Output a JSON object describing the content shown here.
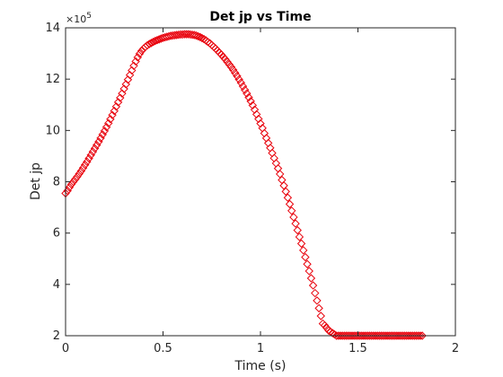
{
  "chart_data": {
    "type": "scatter",
    "title": "Det jp vs Time",
    "xlabel": "Time (s)",
    "ylabel": "Det jp",
    "xlim": [
      0,
      2
    ],
    "ylim": [
      2,
      14
    ],
    "xticks": [
      "0",
      "0.5",
      "1",
      "1.5",
      "2"
    ],
    "yticks": [
      "2",
      "4",
      "6",
      "8",
      "10",
      "12",
      "14"
    ],
    "y_multiplier": "×10",
    "y_exponent": "5",
    "grid": false,
    "marker": "diamond",
    "marker_color": "#e8000b",
    "series": [
      {
        "x": [
          0.0,
          0.01,
          0.02,
          0.03,
          0.04,
          0.05,
          0.06,
          0.07,
          0.08,
          0.09,
          0.1,
          0.11,
          0.12,
          0.13,
          0.14,
          0.15,
          0.16,
          0.17,
          0.18,
          0.19,
          0.2,
          0.21,
          0.22,
          0.23,
          0.24,
          0.25,
          0.26,
          0.27,
          0.28,
          0.29,
          0.3,
          0.31,
          0.32,
          0.33,
          0.34,
          0.35,
          0.36,
          0.37,
          0.38,
          0.39,
          0.4,
          0.41,
          0.42,
          0.43,
          0.44,
          0.45,
          0.46,
          0.47,
          0.48,
          0.49,
          0.5,
          0.51,
          0.52,
          0.53,
          0.54,
          0.55,
          0.56,
          0.57,
          0.58,
          0.59,
          0.6,
          0.61,
          0.62,
          0.63,
          0.64,
          0.65,
          0.66,
          0.67,
          0.68,
          0.69,
          0.7,
          0.71,
          0.72,
          0.73,
          0.74,
          0.75,
          0.76,
          0.77,
          0.78,
          0.79,
          0.8,
          0.81,
          0.82,
          0.83,
          0.84,
          0.85,
          0.86,
          0.87,
          0.88,
          0.89,
          0.9,
          0.91,
          0.92,
          0.93,
          0.94,
          0.95,
          0.96,
          0.97,
          0.98,
          0.99,
          1.0,
          1.01,
          1.02,
          1.03,
          1.04,
          1.05,
          1.06,
          1.07,
          1.08,
          1.09,
          1.1,
          1.11,
          1.12,
          1.13,
          1.14,
          1.15,
          1.16,
          1.17,
          1.18,
          1.19,
          1.2,
          1.21,
          1.22,
          1.23,
          1.24,
          1.25,
          1.26,
          1.27,
          1.28,
          1.29,
          1.3,
          1.31,
          1.32,
          1.33,
          1.34,
          1.35,
          1.36,
          1.37,
          1.38,
          1.39,
          1.4,
          1.41,
          1.42,
          1.43,
          1.44,
          1.45,
          1.46,
          1.47,
          1.48,
          1.49,
          1.5,
          1.51,
          1.52,
          1.53,
          1.54,
          1.55,
          1.56,
          1.57,
          1.58,
          1.59,
          1.6,
          1.61,
          1.62,
          1.63,
          1.64,
          1.65,
          1.66,
          1.67,
          1.68,
          1.69,
          1.7,
          1.71,
          1.72,
          1.73,
          1.74,
          1.75,
          1.76,
          1.77,
          1.78,
          1.79,
          1.8,
          1.81,
          1.82,
          1.83
        ],
        "y": [
          7.55,
          7.65,
          7.78,
          7.9,
          8.0,
          8.1,
          8.2,
          8.31,
          8.42,
          8.54,
          8.66,
          8.78,
          8.91,
          9.04,
          9.17,
          9.3,
          9.43,
          9.56,
          9.7,
          9.84,
          9.98,
          10.13,
          10.28,
          10.44,
          10.6,
          10.76,
          10.93,
          11.1,
          11.27,
          11.44,
          11.62,
          11.8,
          11.98,
          12.16,
          12.34,
          12.52,
          12.69,
          12.85,
          12.99,
          13.1,
          13.19,
          13.26,
          13.32,
          13.37,
          13.41,
          13.45,
          13.49,
          13.52,
          13.55,
          13.58,
          13.61,
          13.63,
          13.65,
          13.67,
          13.69,
          13.7,
          13.71,
          13.72,
          13.73,
          13.74,
          13.74,
          13.75,
          13.75,
          13.75,
          13.74,
          13.73,
          13.72,
          13.7,
          13.67,
          13.64,
          13.6,
          13.56,
          13.51,
          13.45,
          13.4,
          13.33,
          13.26,
          13.19,
          13.11,
          13.03,
          12.95,
          12.86,
          12.77,
          12.67,
          12.57,
          12.47,
          12.36,
          12.24,
          12.12,
          11.99,
          11.86,
          11.72,
          11.58,
          11.44,
          11.29,
          11.14,
          10.98,
          10.81,
          10.63,
          10.45,
          10.27,
          10.09,
          9.89,
          9.7,
          9.51,
          9.32,
          9.12,
          8.92,
          8.72,
          8.52,
          8.3,
          8.07,
          7.85,
          7.62,
          7.38,
          7.13,
          6.87,
          6.62,
          6.37,
          6.11,
          5.85,
          5.59,
          5.33,
          5.06,
          4.79,
          4.52,
          4.24,
          3.96,
          3.66,
          3.37,
          3.07,
          2.77,
          2.47,
          2.4,
          2.3,
          2.2,
          2.15,
          2.1,
          2.05,
          2.0,
          2.0,
          2.0,
          2.0,
          2.0,
          2.0,
          2.0,
          2.0,
          2.0,
          2.0,
          2.0,
          2.0,
          2.0,
          2.0,
          2.0,
          2.0,
          2.0,
          2.0,
          2.0,
          2.0,
          2.0,
          2.0,
          2.0,
          2.0,
          2.0,
          2.0,
          2.0,
          2.0,
          2.0,
          2.0,
          2.0,
          2.0,
          2.0,
          2.0,
          2.0,
          2.0,
          2.0,
          2.0,
          2.0,
          2.0,
          2.0,
          2.0,
          2.0,
          2.0,
          2.0
        ]
      }
    ]
  }
}
